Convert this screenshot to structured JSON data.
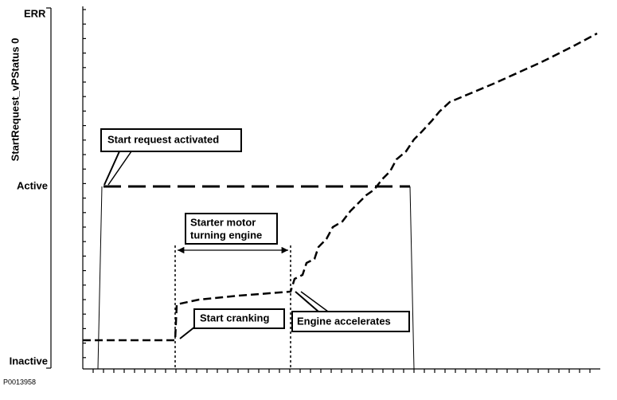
{
  "axis": {
    "top_label": "ERR",
    "y_title": "StartRequest_vPStatus 0",
    "active_label": "Active",
    "inactive_label": "Inactive"
  },
  "figure_id": "P0013958",
  "callouts": [
    {
      "lines": [
        "Start request activated"
      ]
    },
    {
      "lines": [
        "Starter motor",
        "turning engine"
      ]
    },
    {
      "lines": [
        "Start cranking"
      ]
    },
    {
      "lines": [
        "Engine accelerates"
      ]
    }
  ]
}
